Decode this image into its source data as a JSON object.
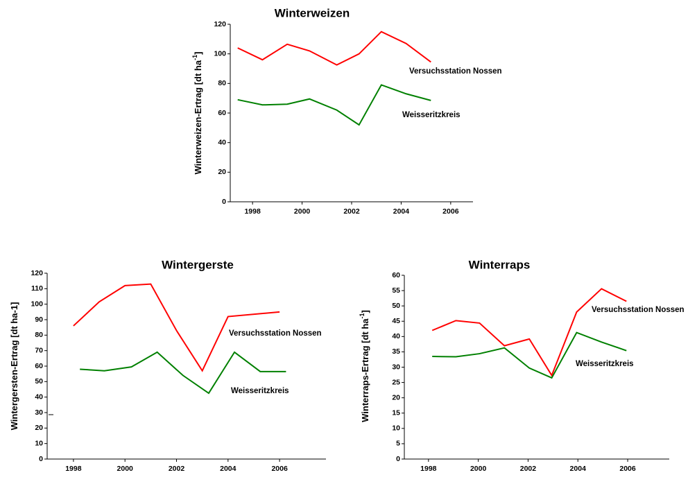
{
  "chart_data": [
    {
      "type": "line",
      "title": "Winterweizen",
      "y_label": {
        "text": "Winterweizen-Ertrag [dt ha",
        "sup": "-1",
        "end": "]"
      },
      "xlim": [
        1997.1,
        2006.9
      ],
      "xticks": [
        1998,
        2000,
        2002,
        2004,
        2006
      ],
      "ylim": [
        0,
        120
      ],
      "yticks": [
        0,
        20,
        40,
        60,
        80,
        100,
        120
      ],
      "series": [
        {
          "name": "Versuchsstation Nossen",
          "color": "#ff0000",
          "x": [
            1997.4,
            1998.4,
            1999.4,
            2000.3,
            2001.4,
            2002.3,
            2003.2,
            2004.2,
            2005.2
          ],
          "values": [
            104,
            96,
            106.5,
            102,
            92.5,
            100,
            115,
            107,
            94.5
          ]
        },
        {
          "name": "Weisseritzkreis",
          "color": "#008000",
          "x": [
            1997.4,
            1998.4,
            1999.4,
            2000.3,
            2001.4,
            2002.3,
            2003.2,
            2004.2,
            2005.2
          ],
          "values": [
            69,
            65.5,
            66,
            69.5,
            62,
            52,
            79,
            73,
            68.5
          ]
        }
      ]
    },
    {
      "type": "line",
      "title": "Wintergerste",
      "y_label": {
        "text": "Wintergersten-Ertrag [dt ha-1]"
      },
      "xlim": [
        1996.98,
        2007.8
      ],
      "xticks": [
        1998,
        2000,
        2002,
        2004,
        2006
      ],
      "ylim": [
        0,
        120
      ],
      "yticks": [
        0,
        10,
        20,
        30,
        40,
        50,
        60,
        70,
        80,
        90,
        100,
        110,
        120
      ],
      "series": [
        {
          "name": "Versuchsstation Nossen",
          "color": "#ff0000",
          "x": [
            1998,
            1999,
            2000,
            2001,
            2002,
            2003,
            2004,
            2006
          ],
          "values": [
            86,
            101.5,
            112,
            113,
            83,
            57,
            92,
            95
          ]
        },
        {
          "name": "Weisseritzkreis",
          "color": "#008000",
          "x": [
            1998.25,
            1999.2,
            2000.25,
            2001.25,
            2002.25,
            2003.25,
            2004.25,
            2005.25,
            2006.25
          ],
          "values": [
            58,
            57,
            59.5,
            69,
            54,
            42.5,
            69,
            56.5,
            56.5
          ]
        }
      ]
    },
    {
      "type": "line",
      "title": "Winterraps",
      "y_label": {
        "text": "Winterraps-Ertrag [dt ha",
        "sup": "-1",
        "end": "]"
      },
      "xlim": [
        1997.03,
        2007.67
      ],
      "xticks": [
        1998,
        2000,
        2002,
        2004,
        2006
      ],
      "ylim": [
        0,
        60
      ],
      "yticks": [
        0,
        5,
        10,
        15,
        20,
        25,
        30,
        35,
        40,
        45,
        50,
        55,
        60
      ],
      "series": [
        {
          "name": "Versuchsstation Nossen",
          "color": "#ff0000",
          "x": [
            1998.15,
            1999.1,
            2000.05,
            2001.05,
            2002.05,
            2002.95,
            2003.95,
            2004.95,
            2005.95
          ],
          "values": [
            42,
            45.2,
            44.4,
            37,
            39.2,
            27.3,
            48,
            55.6,
            51.5
          ]
        },
        {
          "name": "Weisseritzkreis",
          "color": "#008000",
          "x": [
            1998.15,
            1999.1,
            2000.05,
            2001.05,
            2002.05,
            2002.95,
            2003.95,
            2004.95,
            2005.95
          ],
          "values": [
            33.5,
            33.4,
            34.4,
            36.3,
            29.7,
            26.5,
            41.3,
            38.2,
            35.4
          ]
        }
      ]
    }
  ]
}
